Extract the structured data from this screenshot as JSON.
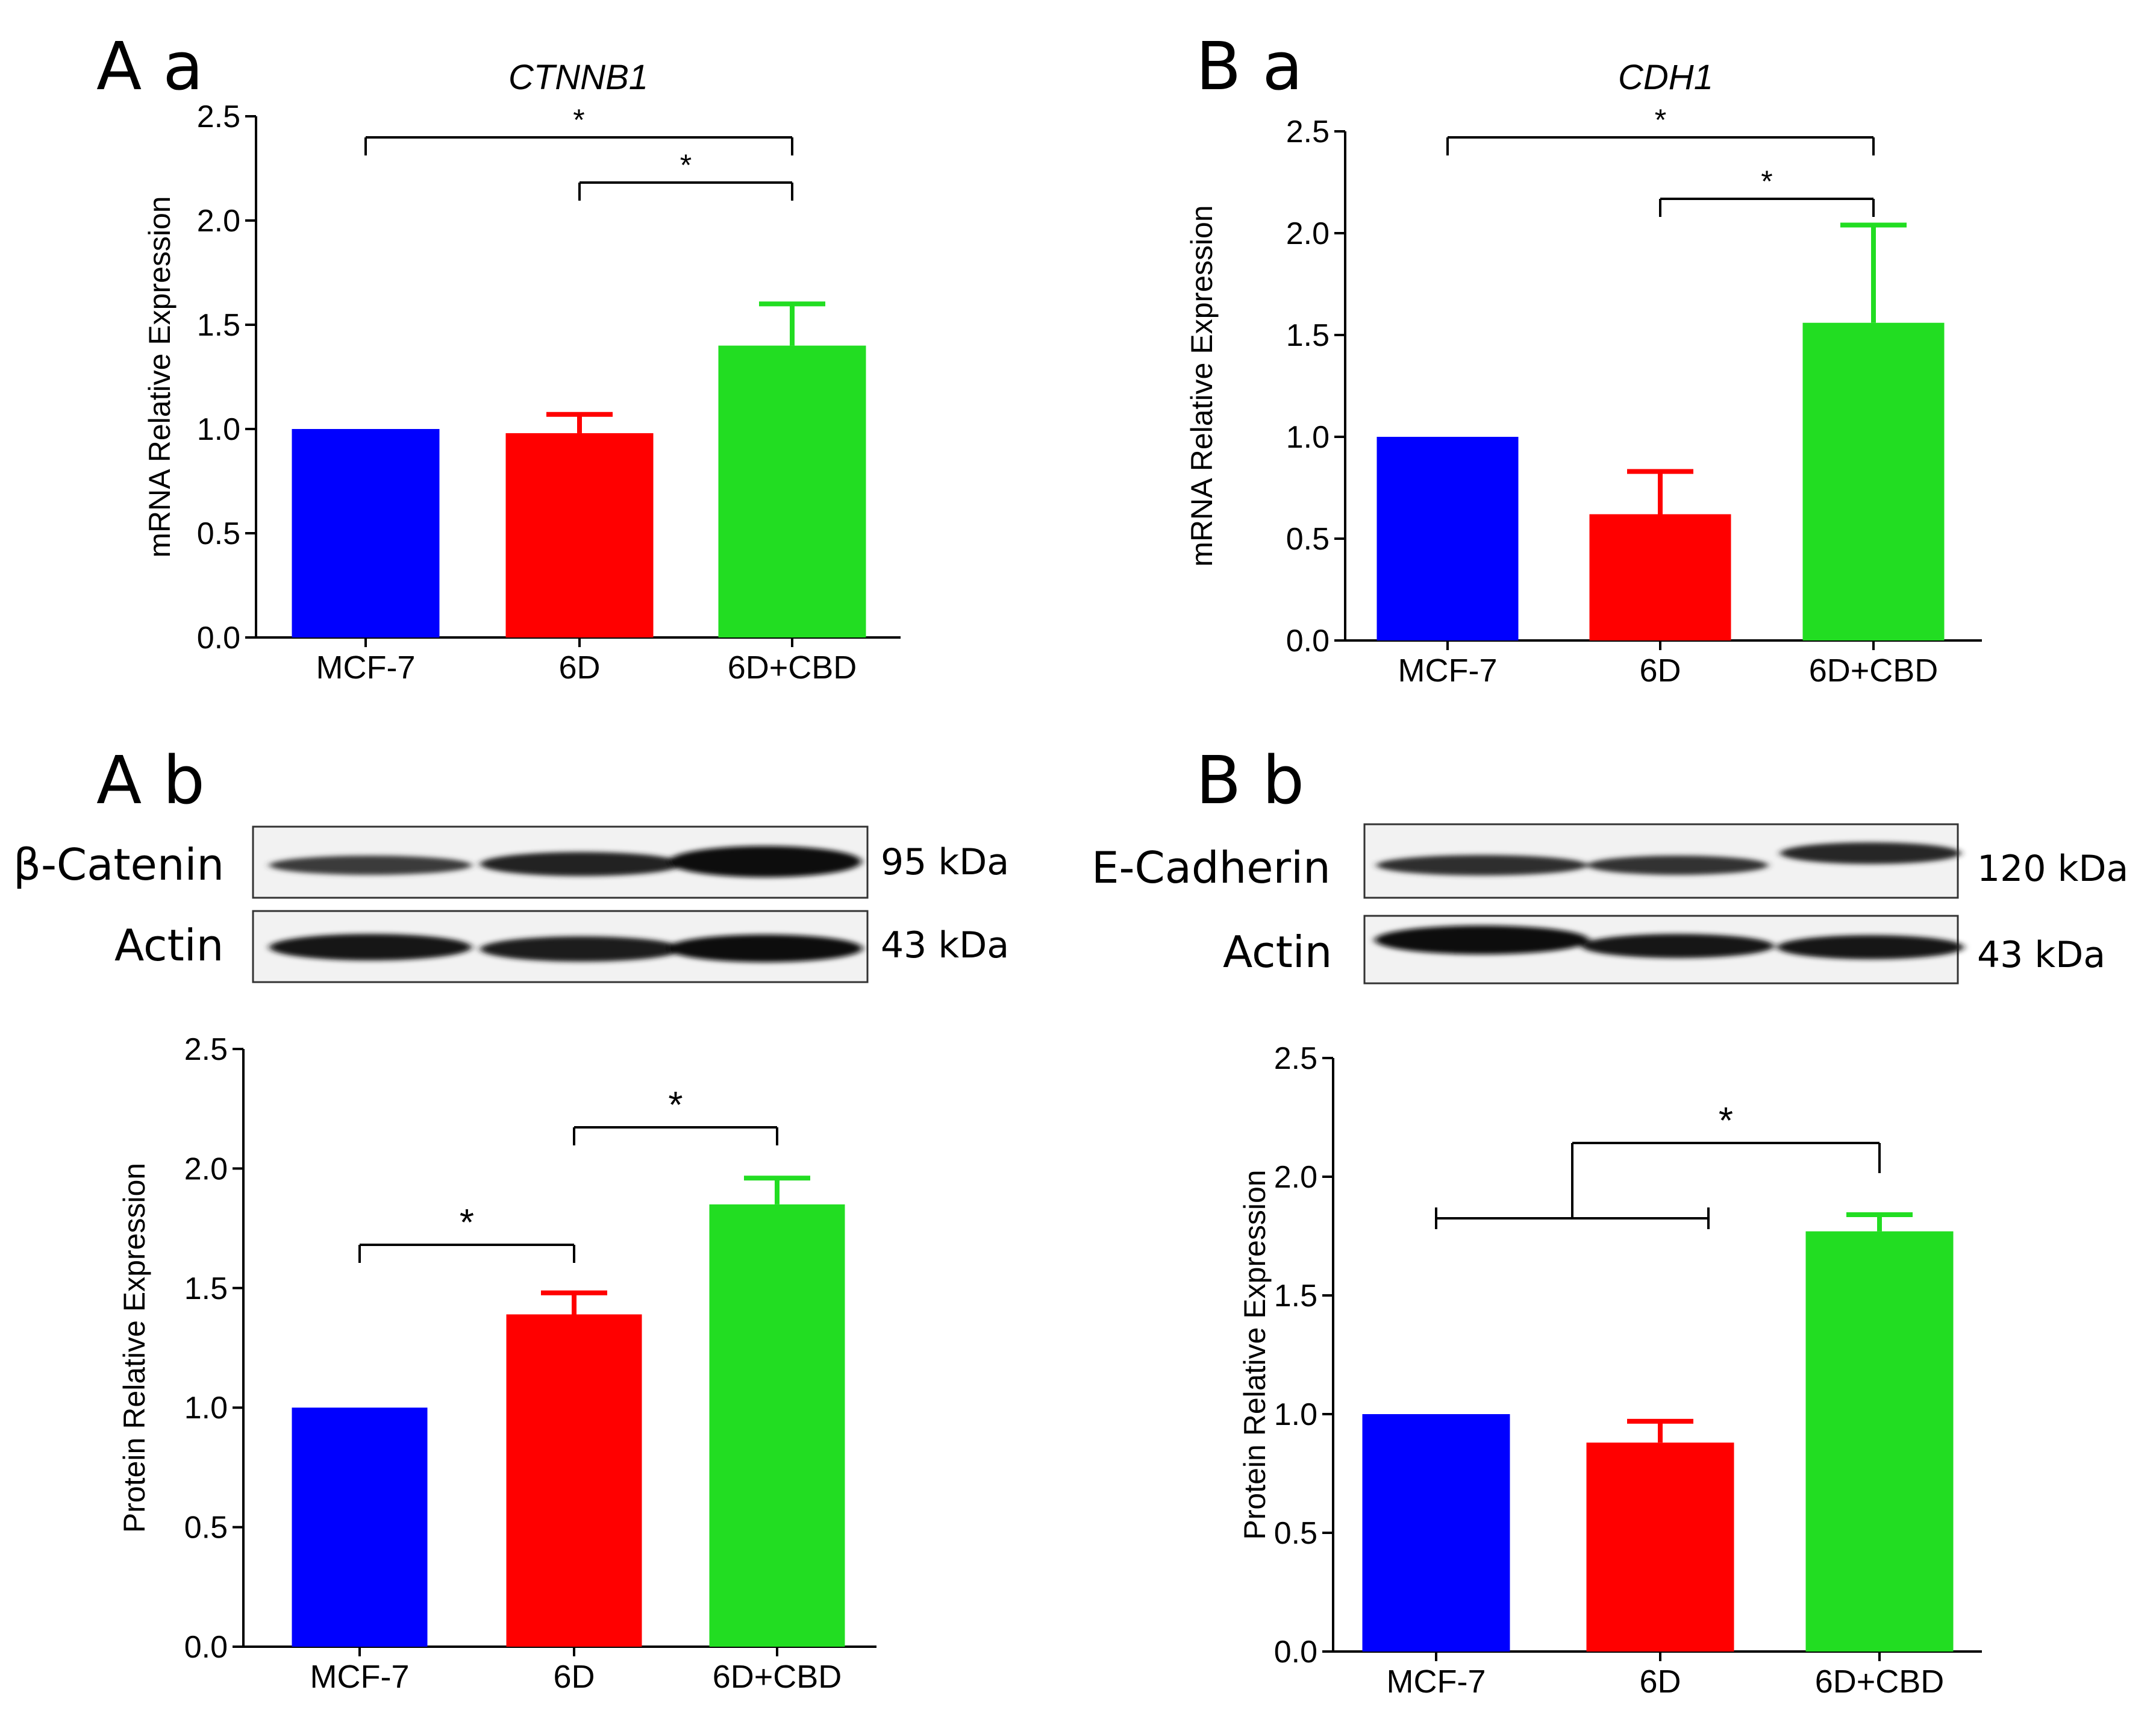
{
  "panels": {
    "Aa": "A a",
    "Ba": "B a",
    "Ab": "A b",
    "Bb": "B b"
  },
  "blots": {
    "A": {
      "target_label": "β-Catenin",
      "target_kda": "95 kDa",
      "control_label": "Actin",
      "control_kda": "43 kDa"
    },
    "B": {
      "target_label": "E-Cadherin",
      "target_kda": "120 kDa",
      "control_label": "Actin",
      "control_kda": "43 kDa"
    }
  },
  "colors": {
    "MCF-7": "#0000ff",
    "6D": "#ff0000",
    "6D+CBD": "#22dd22"
  },
  "chart_data": [
    {
      "id": "Aa",
      "type": "bar",
      "title": "CTNNB1",
      "ylabel": "mRNA Relative Expression",
      "xlabel": "",
      "categories": [
        "MCF-7",
        "6D",
        "6D+CBD"
      ],
      "values": [
        1.0,
        0.98,
        1.4
      ],
      "errors": [
        0,
        0.09,
        0.2
      ],
      "ylim": [
        0,
        2.5
      ],
      "yticks": [
        "0.0",
        "0.5",
        "1.0",
        "1.5",
        "2.0",
        "2.5"
      ],
      "significance": [
        {
          "from": 0,
          "to": 2,
          "label": "*"
        },
        {
          "from": 1,
          "to": 2,
          "label": "*"
        }
      ]
    },
    {
      "id": "Ba",
      "type": "bar",
      "title": "CDH1",
      "ylabel": "mRNA Relative Expression",
      "xlabel": "",
      "categories": [
        "MCF-7",
        "6D",
        "6D+CBD"
      ],
      "values": [
        1.0,
        0.62,
        1.56
      ],
      "errors": [
        0,
        0.21,
        0.48
      ],
      "ylim": [
        0,
        2.5
      ],
      "yticks": [
        "0.0",
        "0.5",
        "1.0",
        "1.5",
        "2.0",
        "2.5"
      ],
      "significance": [
        {
          "from": 0,
          "to": 2,
          "label": "*"
        },
        {
          "from": 1,
          "to": 2,
          "label": "*"
        }
      ]
    },
    {
      "id": "Ab",
      "type": "bar",
      "title": "",
      "ylabel": "Protein Relative Expression",
      "xlabel": "",
      "categories": [
        "MCF-7",
        "6D",
        "6D+CBD"
      ],
      "values": [
        1.0,
        1.39,
        1.85
      ],
      "errors": [
        0,
        0.09,
        0.11
      ],
      "ylim": [
        0,
        2.5
      ],
      "yticks": [
        "0.0",
        "0.5",
        "1.0",
        "1.5",
        "2.0",
        "2.5"
      ],
      "significance": [
        {
          "from": 0,
          "to": 1,
          "label": "*"
        },
        {
          "from": 1,
          "to": 2,
          "label": "*"
        }
      ]
    },
    {
      "id": "Bb",
      "type": "bar",
      "title": "",
      "ylabel": "Protein Relative Expression",
      "xlabel": "",
      "categories": [
        "MCF-7",
        "6D",
        "6D+CBD"
      ],
      "values": [
        1.0,
        0.88,
        1.77
      ],
      "errors": [
        0,
        0.09,
        0.07
      ],
      "ylim": [
        0,
        2.5
      ],
      "yticks": [
        "0.0",
        "0.5",
        "1.0",
        "1.5",
        "2.0",
        "2.5"
      ],
      "significance": [
        {
          "from": [
            0,
            1
          ],
          "to": 2,
          "label": "*"
        }
      ]
    }
  ]
}
